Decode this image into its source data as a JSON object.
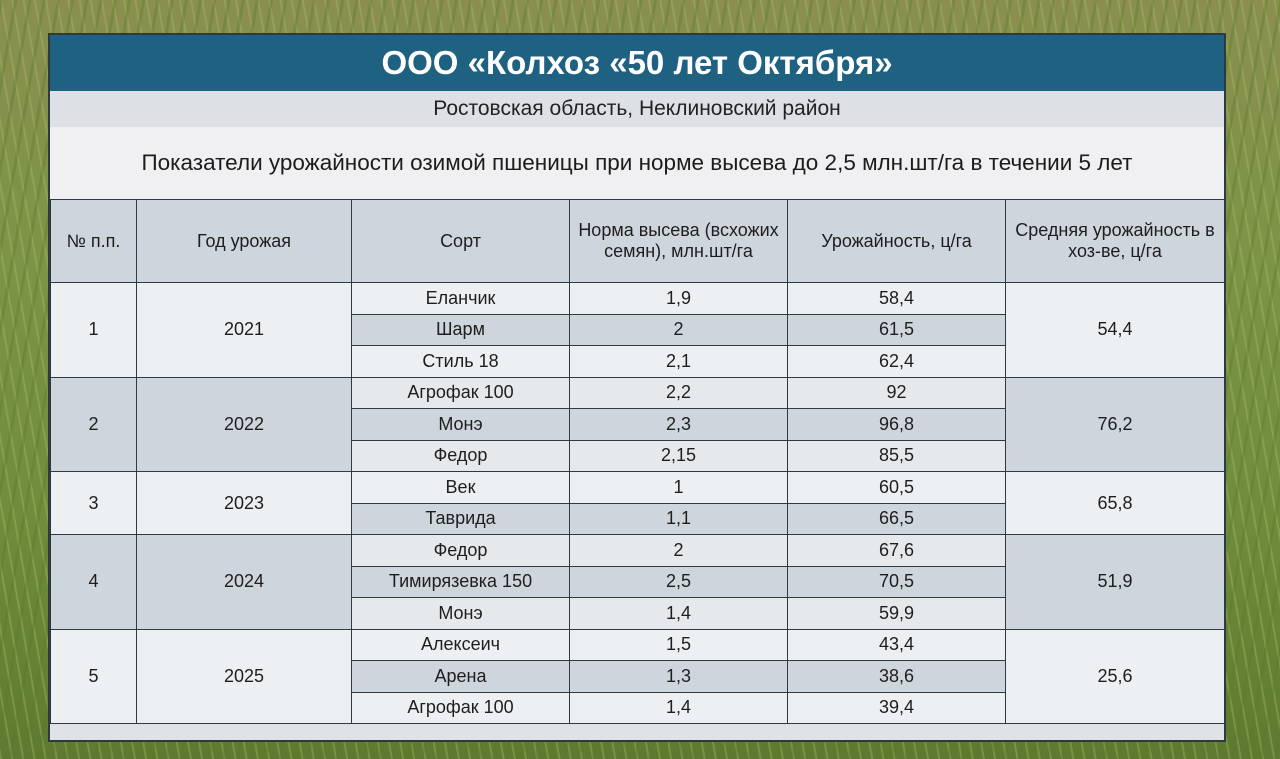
{
  "header": {
    "title": "ООО «Колхоз «50 лет Октября»",
    "region": "Ростовская область, Неклиновский район",
    "caption": "Показатели урожайности озимой пшеницы при норме высева до 2,5 млн.шт/га в течении 5 лет"
  },
  "table": {
    "columns": [
      "№ п.п.",
      "Год урожая",
      "Сорт",
      "Норма высева (всхожих семян), млн.шт/га",
      "Урожайность, ц/га",
      "Средняя урожайность в хоз-ве, ц/га"
    ],
    "groups": [
      {
        "num": "1",
        "year": "2021",
        "avg": "54,4",
        "rows": [
          {
            "variety": "Еланчик",
            "rate": "1,9",
            "yield": "58,4"
          },
          {
            "variety": "Шарм",
            "rate": "2",
            "yield": "61,5"
          },
          {
            "variety": "Стиль 18",
            "rate": "2,1",
            "yield": "62,4"
          }
        ]
      },
      {
        "num": "2",
        "year": "2022",
        "avg": "76,2",
        "rows": [
          {
            "variety": "Агрофак 100",
            "rate": "2,2",
            "yield": "92"
          },
          {
            "variety": "Монэ",
            "rate": "2,3",
            "yield": "96,8"
          },
          {
            "variety": "Федор",
            "rate": "2,15",
            "yield": "85,5"
          }
        ]
      },
      {
        "num": "3",
        "year": "2023",
        "avg": "65,8",
        "rows": [
          {
            "variety": "Век",
            "rate": "1",
            "yield": "60,5"
          },
          {
            "variety": "Таврида",
            "rate": "1,1",
            "yield": "66,5"
          }
        ]
      },
      {
        "num": "4",
        "year": "2024",
        "avg": "51,9",
        "rows": [
          {
            "variety": "Федор",
            "rate": "2",
            "yield": "67,6"
          },
          {
            "variety": "Тимирязевка 150",
            "rate": "2,5",
            "yield": "70,5"
          },
          {
            "variety": "Монэ",
            "rate": "1,4",
            "yield": "59,9"
          }
        ]
      },
      {
        "num": "5",
        "year": "2025",
        "avg": "25,6",
        "rows": [
          {
            "variety": "Алексеич",
            "rate": "1,5",
            "yield": "43,4"
          },
          {
            "variety": "Арена",
            "rate": "1,3",
            "yield": "38,6"
          },
          {
            "variety": "Агрофак 100",
            "rate": "1,4",
            "yield": "39,4"
          }
        ]
      }
    ]
  },
  "colors": {
    "title_bg": "#1f6180",
    "header_cell_bg": "#cfd5dc",
    "light_cell_bg": "#edf0f3",
    "border": "#2f3a40"
  }
}
